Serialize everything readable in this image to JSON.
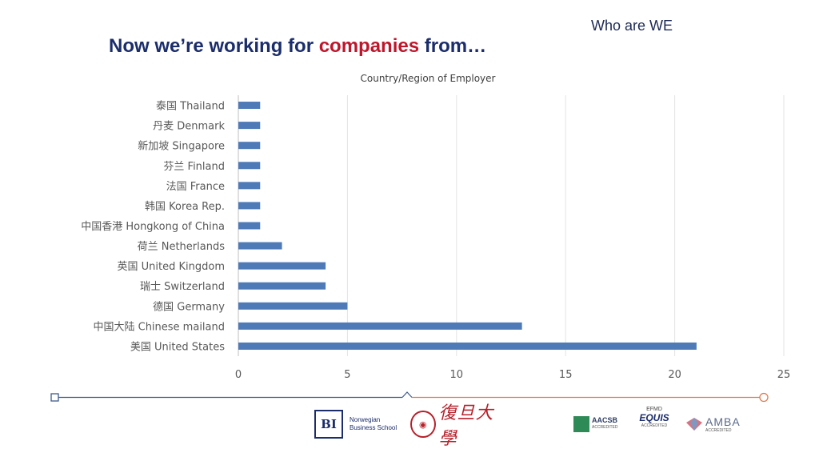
{
  "header": {
    "corner_title": "Who are WE",
    "headline_part1": "Now we’re working for ",
    "headline_highlight": "companies",
    "headline_part2": " from…"
  },
  "chart_data": {
    "type": "bar",
    "orientation": "horizontal",
    "title": "Country/Region of Employer",
    "categories": [
      "泰国 Thailand",
      "丹麦 Denmark",
      "新加坡 Singapore",
      "芬兰 Finland",
      "法国 France",
      "韩国 Korea Rep.",
      "中国香港 Hongkong of China",
      "荷兰 Netherlands",
      "英国 United Kingdom",
      "瑞士 Switzerland",
      "德国 Germany",
      "中国大陆 Chinese mailand",
      "美国 United States"
    ],
    "values": [
      1,
      1,
      1,
      1,
      1,
      1,
      1,
      2,
      4,
      4,
      5,
      13,
      21
    ],
    "xlim": [
      0,
      25
    ],
    "xticks": [
      0,
      5,
      10,
      15,
      20,
      25
    ],
    "grid": "vertical",
    "bar_color": "#4f7ab8"
  },
  "logos": {
    "bi_mark": "BI",
    "bi_name_line1": "Norwegian",
    "bi_name_line2": "Business School",
    "fudan_name": "復旦大學",
    "aacsb": "AACSB",
    "aacsb_sub": "ACCREDITED",
    "equis_top": "EFMD",
    "equis": "EQUIS",
    "equis_sub": "ACCREDITED",
    "amba": "AMBA",
    "amba_sub": "ACCREDITED"
  },
  "colors": {
    "timeline_left": "#3d5a8c",
    "timeline_right": "#e07a4f"
  }
}
